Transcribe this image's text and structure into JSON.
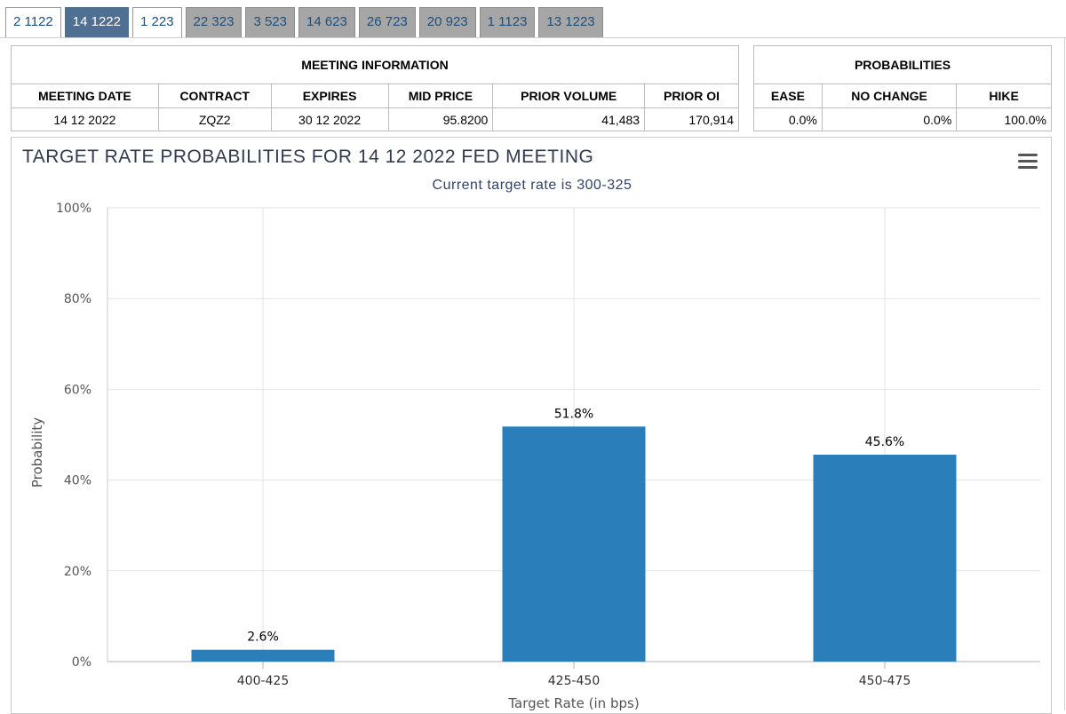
{
  "tabs": [
    {
      "label": "2 1122",
      "style": "normal"
    },
    {
      "label": "14 1222",
      "style": "active"
    },
    {
      "label": "1 223",
      "style": "normal"
    },
    {
      "label": "22 323",
      "style": "grey"
    },
    {
      "label": "3 523",
      "style": "grey"
    },
    {
      "label": "14 623",
      "style": "grey"
    },
    {
      "label": "26 723",
      "style": "grey"
    },
    {
      "label": "20 923",
      "style": "grey"
    },
    {
      "label": "1 1123",
      "style": "grey"
    },
    {
      "label": "13 1223",
      "style": "grey"
    }
  ],
  "meeting_info": {
    "title": "MEETING INFORMATION",
    "headers": [
      "MEETING DATE",
      "CONTRACT",
      "EXPIRES",
      "MID PRICE",
      "PRIOR VOLUME",
      "PRIOR OI"
    ],
    "values": [
      "14 12 2022",
      "ZQZ2",
      "30 12 2022",
      "95.8200",
      "41,483",
      "170,914"
    ]
  },
  "probabilities": {
    "title": "PROBABILITIES",
    "headers": [
      "EASE",
      "NO CHANGE",
      "HIKE"
    ],
    "values": [
      "0.0%",
      "0.0%",
      "100.0%"
    ]
  },
  "menu_icon": "hamburger-menu-icon",
  "chart_data": {
    "type": "bar",
    "title": "TARGET RATE PROBABILITIES FOR 14 12 2022 FED MEETING",
    "subtitle": "Current target rate is 300-325",
    "xlabel": "Target Rate (in bps)",
    "ylabel": "Probability",
    "categories": [
      "400-425",
      "425-450",
      "450-475"
    ],
    "values": [
      2.6,
      51.8,
      45.6
    ],
    "data_labels": [
      "2.6%",
      "51.8%",
      "45.6%"
    ],
    "ylim": [
      0,
      100
    ],
    "yticks": [
      "0%",
      "20%",
      "40%",
      "60%",
      "80%",
      "100%"
    ],
    "grid": true,
    "bar_color": "#2a7fba"
  }
}
